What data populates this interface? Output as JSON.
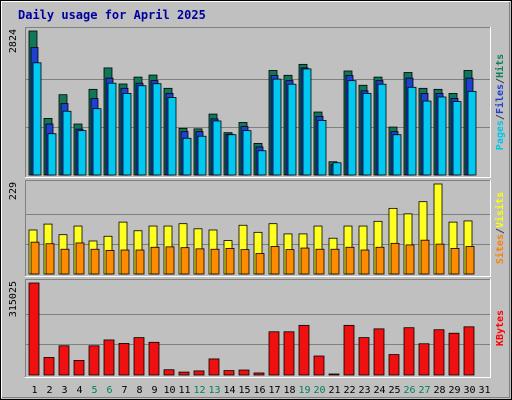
{
  "chart_data": {
    "type": "bar",
    "title": "Daily usage for April 2025",
    "days": [
      "1",
      "2",
      "3",
      "4",
      "5",
      "6",
      "7",
      "8",
      "9",
      "10",
      "11",
      "12",
      "13",
      "14",
      "15",
      "16",
      "17",
      "18",
      "19",
      "20",
      "21",
      "22",
      "23",
      "24",
      "25",
      "26",
      "27",
      "28",
      "29",
      "30",
      "31"
    ],
    "weekend_days": [
      "5",
      "6",
      "12",
      "13",
      "19",
      "20",
      "26",
      "27"
    ],
    "panels": [
      {
        "id": "hits-files-pages",
        "max_label": "2824",
        "max_value": 2824,
        "right_labels": [
          {
            "text": "Pages",
            "color": "#00c8e8"
          },
          {
            "text": "/",
            "color": "#404040"
          },
          {
            "text": "Files",
            "color": "#2040d0"
          },
          {
            "text": "/",
            "color": "#404040"
          },
          {
            "text": "Hits",
            "color": "#108060"
          }
        ],
        "series": [
          {
            "name": "Hits",
            "color": "#107858",
            "values": [
              2824,
              1110,
              1575,
              1000,
              1680,
              2100,
              1785,
              1920,
              1960,
              1700,
              915,
              905,
              1195,
              830,
              1030,
              620,
              2050,
              1955,
              2170,
              1235,
              260,
              2040,
              1760,
              1920,
              940,
              2010,
              1700,
              1680,
              1600,
              2050
            ]
          },
          {
            "name": "Files",
            "color": "#2040d0",
            "values": [
              2500,
              1000,
              1400,
              900,
              1500,
              1900,
              1700,
              1800,
              1850,
              1600,
              850,
              850,
              1100,
              800,
              950,
              550,
              1950,
              1850,
              2100,
              1150,
              200,
              1950,
              1650,
              1850,
              850,
              1900,
              1600,
              1600,
              1500,
              1900
            ]
          },
          {
            "name": "Pages",
            "color": "#00c8f0",
            "values": [
              2200,
              810,
              1250,
              870,
              1300,
              1800,
              1600,
              1750,
              1790,
              1520,
              720,
              760,
              1060,
              790,
              870,
              475,
              1880,
              1780,
              2080,
              1070,
              240,
              1850,
              1600,
              1780,
              790,
              1720,
              1450,
              1530,
              1440,
              1640
            ]
          }
        ]
      },
      {
        "id": "visits-sites",
        "max_label": "229",
        "max_value": 229,
        "right_labels": [
          {
            "text": "Sites",
            "color": "#ff8000"
          },
          {
            "text": "/",
            "color": "#404040"
          },
          {
            "text": "Visits",
            "color": "#ffff00"
          }
        ],
        "series": [
          {
            "name": "Visits",
            "color": "#ffff20",
            "values": [
              112,
              127,
              100,
              122,
              84,
              96,
              132,
              110,
              122,
              122,
              128,
              115,
              112,
              85,
              124,
              106,
              128,
              102,
              102,
              122,
              91,
              122,
              122,
              134,
              167,
              153,
              184,
              229,
              132,
              135
            ]
          },
          {
            "name": "Sites",
            "color": "#ff8c00",
            "values": [
              81,
              77,
              63,
              79,
              63,
              60,
              61,
              61,
              68,
              69,
              67,
              64,
              63,
              65,
              62,
              52,
              70,
              62,
              66,
              63,
              63,
              68,
              61,
              68,
              78,
              74,
              86,
              76,
              65,
              70
            ]
          }
        ]
      },
      {
        "id": "kbytes",
        "max_label": "315025",
        "max_value": 315025,
        "right_labels": [
          {
            "text": "KBytes",
            "color": "#ff0000"
          }
        ],
        "series": [
          {
            "name": "KBytes",
            "color": "#f01010",
            "values": [
              315025,
              60000,
              100000,
              50000,
              100000,
              120000,
              108000,
              128000,
              112000,
              18000,
              10000,
              14000,
              55000,
              15000,
              17000,
              7000,
              148000,
              148000,
              170000,
              65000,
              2000,
              170000,
              128000,
              158000,
              70000,
              162000,
              107000,
              155000,
              143000,
              165000
            ]
          }
        ]
      }
    ]
  }
}
